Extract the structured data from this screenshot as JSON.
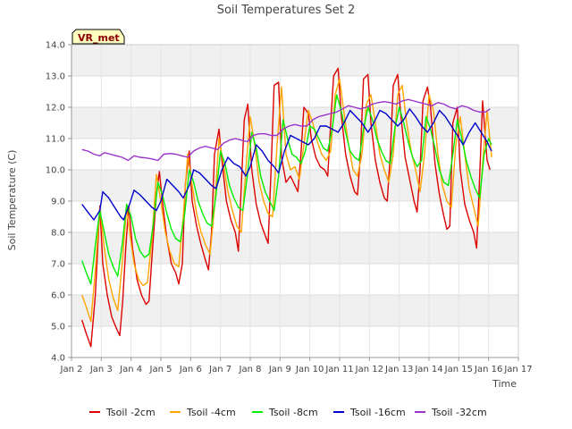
{
  "chart_data": {
    "type": "line",
    "title": "Soil Temperatures Set 2",
    "xlabel": "Time",
    "ylabel": "Soil Temperature (C)",
    "ylim": [
      4.0,
      14.0
    ],
    "xlim": [
      2,
      17
    ],
    "x_unit": "day of January",
    "yticks": [
      "4.0",
      "5.0",
      "6.0",
      "7.0",
      "8.0",
      "9.0",
      "10.0",
      "11.0",
      "12.0",
      "13.0",
      "14.0"
    ],
    "xticks": [
      "Jan 2",
      "Jan 3",
      "Jan 4",
      "Jan 5",
      "Jan 6",
      "Jan 7",
      "Jan 8",
      "Jan 9",
      "Jan 10",
      "Jan 11",
      "Jan 12",
      "Jan 13",
      "Jan 14",
      "Jan 15",
      "Jan 16",
      "Jan 17"
    ],
    "site_tag": "VR_met",
    "grid": true,
    "legend_position": "bottom",
    "series": [
      {
        "name": "Tsoil -2cm",
        "color": "#dd0000",
        "x": [
          2.35,
          2.5,
          2.65,
          2.8,
          2.95,
          3.05,
          3.2,
          3.35,
          3.5,
          3.62,
          3.72,
          3.82,
          3.92,
          4.05,
          4.2,
          4.35,
          4.5,
          4.6,
          4.7,
          4.85,
          4.95,
          5.05,
          5.2,
          5.35,
          5.5,
          5.6,
          5.72,
          5.82,
          5.95,
          6.05,
          6.2,
          6.35,
          6.5,
          6.6,
          6.7,
          6.8,
          6.95,
          7.05,
          7.2,
          7.35,
          7.5,
          7.6,
          7.7,
          7.8,
          7.92,
          8.05,
          8.2,
          8.35,
          8.5,
          8.6,
          8.7,
          8.8,
          8.95,
          9.05,
          9.2,
          9.35,
          9.5,
          9.6,
          9.7,
          9.8,
          9.95,
          10.05,
          10.2,
          10.35,
          10.5,
          10.6,
          10.7,
          10.8,
          10.95,
          11.05,
          11.2,
          11.35,
          11.5,
          11.6,
          11.7,
          11.8,
          11.95,
          12.05,
          12.2,
          12.35,
          12.5,
          12.6,
          12.7,
          12.8,
          12.95,
          13.05,
          13.2,
          13.35,
          13.5,
          13.6,
          13.7,
          13.8,
          13.95,
          14.05,
          14.2,
          14.35,
          14.5,
          14.6,
          14.7,
          14.8,
          14.95,
          15.05,
          15.2,
          15.35,
          15.5,
          15.6,
          15.7,
          15.8,
          15.95,
          16.05
        ],
        "y": [
          5.2,
          4.75,
          4.35,
          6.0,
          8.85,
          7.0,
          6.0,
          5.3,
          4.95,
          4.7,
          5.8,
          7.5,
          8.85,
          7.5,
          6.5,
          6.0,
          5.7,
          5.8,
          7.2,
          9.2,
          9.95,
          9.0,
          7.8,
          7.0,
          6.7,
          6.35,
          7.0,
          9.5,
          10.6,
          9.0,
          8.2,
          7.6,
          7.1,
          6.8,
          8.0,
          10.5,
          11.3,
          10.3,
          9.0,
          8.4,
          8.0,
          7.4,
          9.5,
          11.6,
          12.1,
          10.0,
          8.9,
          8.3,
          7.9,
          7.65,
          10.0,
          12.7,
          12.8,
          10.4,
          9.6,
          9.8,
          9.5,
          9.3,
          10.5,
          12.0,
          11.8,
          11.0,
          10.4,
          10.1,
          10.0,
          9.8,
          11.5,
          13.0,
          13.25,
          11.8,
          10.5,
          9.8,
          9.3,
          9.2,
          10.5,
          12.9,
          13.05,
          11.5,
          10.3,
          9.6,
          9.1,
          9.0,
          10.5,
          12.7,
          13.05,
          11.8,
          10.4,
          9.7,
          9.0,
          8.65,
          10.0,
          12.2,
          12.65,
          12.0,
          10.2,
          9.2,
          8.5,
          8.1,
          8.2,
          11.5,
          12.0,
          10.0,
          8.9,
          8.4,
          8.0,
          7.5,
          9.8,
          12.2,
          10.3,
          10.0
        ]
      },
      {
        "name": "Tsoil -4cm",
        "color": "#ffa500",
        "x": [
          2.35,
          2.5,
          2.65,
          2.8,
          2.95,
          3.1,
          3.25,
          3.4,
          3.55,
          3.7,
          3.85,
          3.95,
          4.1,
          4.25,
          4.4,
          4.55,
          4.7,
          4.85,
          5.0,
          5.15,
          5.3,
          5.45,
          5.6,
          5.75,
          5.9,
          6.05,
          6.2,
          6.35,
          6.5,
          6.65,
          6.8,
          6.95,
          7.1,
          7.25,
          7.4,
          7.55,
          7.7,
          7.85,
          8.0,
          8.15,
          8.3,
          8.45,
          8.6,
          8.75,
          8.9,
          9.05,
          9.2,
          9.35,
          9.5,
          9.65,
          9.8,
          9.95,
          10.1,
          10.25,
          10.4,
          10.55,
          10.7,
          10.85,
          11.0,
          11.15,
          11.3,
          11.45,
          11.6,
          11.75,
          11.9,
          12.05,
          12.2,
          12.35,
          12.5,
          12.65,
          12.8,
          12.95,
          13.1,
          13.25,
          13.4,
          13.55,
          13.7,
          13.85,
          14.0,
          14.15,
          14.3,
          14.45,
          14.6,
          14.75,
          14.9,
          15.05,
          15.2,
          15.35,
          15.5,
          15.65,
          15.8,
          15.95,
          16.1
        ],
        "y": [
          6.0,
          5.6,
          5.15,
          6.8,
          8.8,
          7.5,
          6.5,
          5.9,
          5.5,
          7.0,
          8.8,
          8.0,
          7.0,
          6.5,
          6.3,
          6.4,
          7.8,
          9.85,
          9.0,
          8.0,
          7.4,
          7.0,
          6.9,
          8.5,
          10.5,
          9.5,
          8.6,
          8.0,
          7.6,
          7.3,
          8.8,
          11.0,
          10.2,
          9.3,
          8.7,
          8.2,
          8.0,
          10.0,
          11.7,
          10.8,
          9.6,
          9.0,
          8.6,
          8.5,
          10.8,
          12.65,
          10.5,
          10.0,
          10.1,
          9.7,
          10.8,
          11.9,
          11.5,
          10.9,
          10.5,
          10.3,
          10.6,
          12.4,
          12.9,
          11.8,
          10.8,
          10.0,
          9.8,
          10.5,
          12.1,
          12.4,
          11.5,
          10.5,
          10.0,
          9.6,
          10.5,
          12.4,
          12.7,
          11.5,
          10.6,
          10.0,
          9.3,
          10.5,
          12.4,
          11.9,
          10.5,
          9.5,
          9.0,
          8.8,
          10.8,
          11.7,
          10.5,
          9.4,
          8.8,
          8.2,
          10.2,
          11.9,
          10.4
        ]
      },
      {
        "name": "Tsoil -8cm",
        "color": "#00ee00",
        "x": [
          2.35,
          2.5,
          2.65,
          2.8,
          2.95,
          3.1,
          3.25,
          3.4,
          3.55,
          3.7,
          3.85,
          4.0,
          4.15,
          4.3,
          4.45,
          4.6,
          4.75,
          4.9,
          5.05,
          5.2,
          5.35,
          5.5,
          5.65,
          5.8,
          5.95,
          6.1,
          6.25,
          6.4,
          6.55,
          6.7,
          6.85,
          7.0,
          7.15,
          7.3,
          7.45,
          7.6,
          7.75,
          7.9,
          8.05,
          8.2,
          8.35,
          8.5,
          8.65,
          8.8,
          8.95,
          9.1,
          9.25,
          9.4,
          9.55,
          9.7,
          9.85,
          10.0,
          10.15,
          10.3,
          10.45,
          10.6,
          10.75,
          10.9,
          11.05,
          11.2,
          11.35,
          11.5,
          11.65,
          11.8,
          11.95,
          12.1,
          12.25,
          12.4,
          12.55,
          12.7,
          12.85,
          13.0,
          13.15,
          13.3,
          13.45,
          13.6,
          13.75,
          13.9,
          14.05,
          14.2,
          14.35,
          14.5,
          14.65,
          14.8,
          14.95,
          15.1,
          15.25,
          15.4,
          15.55,
          15.7,
          15.85,
          16.0,
          16.1
        ],
        "y": [
          7.1,
          6.7,
          6.35,
          7.6,
          8.7,
          8.0,
          7.3,
          6.9,
          6.6,
          7.6,
          8.9,
          8.5,
          7.8,
          7.4,
          7.2,
          7.3,
          8.3,
          9.6,
          9.2,
          8.6,
          8.1,
          7.8,
          7.7,
          8.6,
          10.0,
          9.6,
          9.0,
          8.6,
          8.3,
          8.2,
          9.2,
          10.6,
          10.2,
          9.5,
          9.1,
          8.8,
          8.7,
          9.8,
          11.2,
          10.7,
          9.8,
          9.3,
          9.0,
          8.7,
          9.8,
          11.6,
          11.0,
          10.5,
          10.4,
          10.2,
          10.6,
          11.4,
          11.3,
          11.0,
          10.7,
          10.6,
          11.3,
          12.4,
          11.9,
          11.2,
          10.6,
          10.4,
          10.3,
          11.3,
          12.0,
          11.6,
          11.0,
          10.6,
          10.3,
          10.2,
          11.3,
          12.0,
          11.5,
          10.9,
          10.4,
          10.1,
          10.3,
          11.7,
          11.3,
          10.7,
          10.0,
          9.6,
          9.5,
          10.5,
          11.6,
          11.0,
          10.3,
          9.8,
          9.4,
          9.1,
          10.5,
          11.0,
          10.8
        ]
      },
      {
        "name": "Tsoil -16cm",
        "color": "#0000cc",
        "x": [
          2.35,
          2.55,
          2.75,
          2.95,
          3.05,
          3.25,
          3.45,
          3.65,
          3.75,
          3.95,
          4.1,
          4.3,
          4.5,
          4.7,
          4.85,
          5.0,
          5.2,
          5.4,
          5.6,
          5.75,
          5.95,
          6.1,
          6.3,
          6.5,
          6.7,
          6.85,
          7.05,
          7.25,
          7.45,
          7.65,
          7.85,
          8.0,
          8.2,
          8.4,
          8.6,
          8.8,
          8.95,
          9.15,
          9.35,
          9.55,
          9.75,
          9.95,
          10.15,
          10.35,
          10.55,
          10.75,
          10.95,
          11.15,
          11.35,
          11.55,
          11.75,
          11.95,
          12.15,
          12.35,
          12.55,
          12.75,
          12.95,
          13.15,
          13.35,
          13.55,
          13.75,
          13.95,
          14.15,
          14.35,
          14.55,
          14.75,
          14.95,
          15.15,
          15.35,
          15.55,
          15.75,
          15.95,
          16.1
        ],
        "y": [
          8.9,
          8.65,
          8.4,
          8.7,
          9.3,
          9.1,
          8.8,
          8.5,
          8.4,
          8.9,
          9.35,
          9.2,
          9.0,
          8.8,
          8.7,
          9.0,
          9.7,
          9.5,
          9.3,
          9.1,
          9.5,
          10.0,
          9.9,
          9.7,
          9.5,
          9.4,
          10.0,
          10.4,
          10.2,
          10.1,
          9.8,
          10.1,
          10.8,
          10.6,
          10.3,
          10.1,
          9.9,
          10.6,
          11.1,
          11.0,
          10.9,
          10.8,
          11.0,
          11.4,
          11.4,
          11.3,
          11.2,
          11.5,
          11.9,
          11.7,
          11.5,
          11.2,
          11.5,
          11.9,
          11.8,
          11.6,
          11.4,
          11.6,
          11.95,
          11.7,
          11.4,
          11.2,
          11.5,
          11.9,
          11.7,
          11.4,
          11.1,
          10.8,
          11.2,
          11.5,
          11.2,
          10.9,
          10.6
        ]
      },
      {
        "name": "Tsoil -32cm",
        "color": "#9933cc",
        "x": [
          2.35,
          2.55,
          2.75,
          2.95,
          3.1,
          3.3,
          3.5,
          3.7,
          3.9,
          4.1,
          4.3,
          4.5,
          4.7,
          4.9,
          5.1,
          5.3,
          5.5,
          5.7,
          5.9,
          6.1,
          6.3,
          6.5,
          6.7,
          6.9,
          7.1,
          7.3,
          7.5,
          7.7,
          7.9,
          8.1,
          8.3,
          8.5,
          8.7,
          8.9,
          9.1,
          9.3,
          9.5,
          9.7,
          9.9,
          10.1,
          10.3,
          10.5,
          10.7,
          10.9,
          11.1,
          11.3,
          11.5,
          11.7,
          11.9,
          12.1,
          12.3,
          12.5,
          12.7,
          12.9,
          13.1,
          13.3,
          13.5,
          13.7,
          13.9,
          14.1,
          14.3,
          14.5,
          14.7,
          14.9,
          15.1,
          15.3,
          15.5,
          15.7,
          15.9,
          16.05
        ],
        "y": [
          10.65,
          10.6,
          10.5,
          10.45,
          10.55,
          10.5,
          10.45,
          10.4,
          10.3,
          10.45,
          10.4,
          10.38,
          10.35,
          10.3,
          10.5,
          10.52,
          10.5,
          10.45,
          10.4,
          10.6,
          10.7,
          10.75,
          10.7,
          10.65,
          10.85,
          10.95,
          11.0,
          10.95,
          10.9,
          11.1,
          11.15,
          11.15,
          11.1,
          11.1,
          11.3,
          11.4,
          11.45,
          11.4,
          11.4,
          11.6,
          11.7,
          11.75,
          11.8,
          11.85,
          11.95,
          12.05,
          12.0,
          11.95,
          12.0,
          12.1,
          12.15,
          12.18,
          12.15,
          12.1,
          12.2,
          12.25,
          12.2,
          12.15,
          12.1,
          12.05,
          12.15,
          12.1,
          12.0,
          11.95,
          12.05,
          12.0,
          11.9,
          11.85,
          11.85,
          11.95
        ]
      }
    ]
  }
}
